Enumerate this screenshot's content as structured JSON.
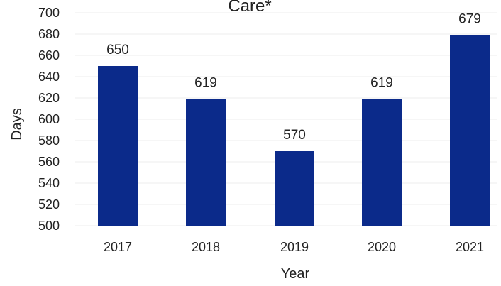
{
  "chart_data": {
    "type": "bar",
    "title": "Care*",
    "xlabel": "Year",
    "ylabel": "Days",
    "categories": [
      "2017",
      "2018",
      "2019",
      "2020",
      "2021"
    ],
    "values": [
      650,
      619,
      570,
      619,
      679
    ],
    "ylim": [
      500,
      700
    ],
    "yticks": [
      500,
      520,
      540,
      560,
      580,
      600,
      620,
      640,
      660,
      680,
      700
    ],
    "grid": true,
    "bar_color": "#0B2A8A",
    "grid_color": "#eeeeee",
    "data_labels": true,
    "legend": "none"
  }
}
